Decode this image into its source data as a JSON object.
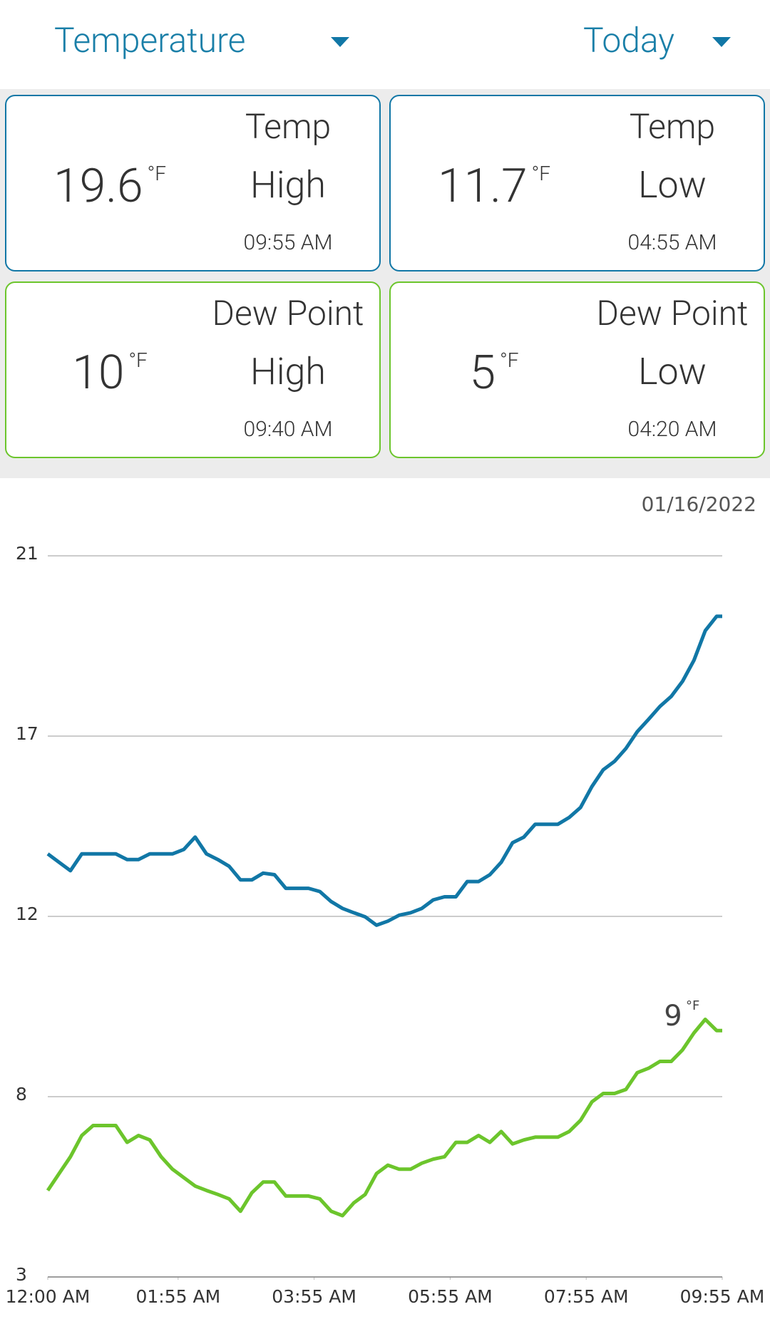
{
  "header": {
    "metric": "Temperature",
    "period": "Today"
  },
  "cards": [
    {
      "value": "19.6",
      "unit": "°F",
      "label": "Temp",
      "sublabel": "High",
      "time": "09:55 AM",
      "color": "#1177a6"
    },
    {
      "value": "11.7",
      "unit": "°F",
      "label": "Temp",
      "sublabel": "Low",
      "time": "04:55 AM",
      "color": "#1177a6"
    },
    {
      "value": "10",
      "unit": "°F",
      "label": "Dew Point",
      "sublabel": "High",
      "time": "09:40 AM",
      "color": "#6cc52c"
    },
    {
      "value": "5",
      "unit": "°F",
      "label": "Dew Point",
      "sublabel": "Low",
      "time": "04:20 AM",
      "color": "#6cc52c"
    }
  ],
  "chart_data": {
    "type": "line",
    "date": "01/16/2022",
    "x": [
      0,
      10,
      20,
      30,
      40,
      50,
      60,
      70,
      80,
      90,
      100,
      110,
      120,
      130,
      140,
      150,
      160,
      170,
      180,
      190,
      200,
      210,
      220,
      230,
      240,
      250,
      260,
      270,
      280,
      290,
      300,
      310,
      320,
      330,
      340,
      350,
      360,
      370,
      380,
      390,
      400,
      410,
      420,
      430,
      440,
      450,
      460,
      470,
      480,
      490,
      500,
      510,
      520,
      530,
      540,
      550,
      560,
      570,
      580,
      590,
      595
    ],
    "xlim": [
      0,
      595
    ],
    "xticks": [
      {
        "value": 0,
        "label": "12:00 AM"
      },
      {
        "value": 115,
        "label": "01:55 AM"
      },
      {
        "value": 235,
        "label": "03:55 AM"
      },
      {
        "value": 355,
        "label": "05:55 AM"
      },
      {
        "value": 475,
        "label": "07:55 AM"
      },
      {
        "value": 595,
        "label": "09:55 AM"
      }
    ],
    "ylim": [
      3,
      21
    ],
    "yticks": [
      3,
      {
        "value": 7.5,
        "label": "8"
      },
      12,
      {
        "value": 16.5,
        "label": "17"
      },
      21
    ],
    "grid": true,
    "series": [
      {
        "color": "#1177a6",
        "values": [
          13.56,
          13.35,
          13.14,
          13.56,
          13.56,
          13.56,
          13.56,
          13.42,
          13.42,
          13.56,
          13.56,
          13.56,
          13.67,
          13.98,
          13.56,
          13.42,
          13.25,
          12.91,
          12.91,
          13.08,
          13.04,
          12.7,
          12.7,
          12.7,
          12.62,
          12.37,
          12.2,
          12.09,
          11.99,
          11.78,
          11.88,
          12.03,
          12.09,
          12.2,
          12.41,
          12.49,
          12.49,
          12.87,
          12.87,
          13.04,
          13.35,
          13.84,
          13.98,
          14.3,
          14.3,
          14.3,
          14.47,
          14.72,
          15.24,
          15.66,
          15.87,
          16.19,
          16.61,
          16.92,
          17.24,
          17.49,
          17.87,
          18.39,
          19.13,
          19.49,
          19.49
        ]
      },
      {
        "color": "#6cc52c",
        "values": [
          5.16,
          5.58,
          6.0,
          6.53,
          6.78,
          6.78,
          6.78,
          6.36,
          6.53,
          6.42,
          6.0,
          5.69,
          5.48,
          5.27,
          5.16,
          5.06,
          4.95,
          4.64,
          5.1,
          5.37,
          5.37,
          5.02,
          5.02,
          5.02,
          4.95,
          4.64,
          4.53,
          4.85,
          5.06,
          5.58,
          5.79,
          5.69,
          5.69,
          5.84,
          5.94,
          6.0,
          6.36,
          6.36,
          6.53,
          6.36,
          6.63,
          6.32,
          6.42,
          6.49,
          6.49,
          6.49,
          6.63,
          6.91,
          7.37,
          7.58,
          7.58,
          7.68,
          8.1,
          8.21,
          8.38,
          8.38,
          8.67,
          9.09,
          9.43,
          9.15,
          9.15
        ]
      }
    ],
    "annotation": {
      "text": "9",
      "unit": "°F"
    }
  }
}
